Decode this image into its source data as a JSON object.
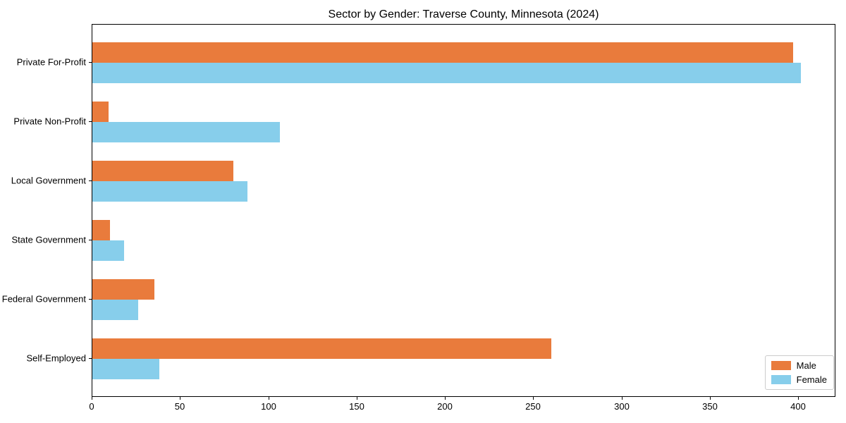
{
  "chart_data": {
    "type": "bar",
    "orientation": "horizontal",
    "title": "Sector by Gender: Traverse County, Minnesota (2024)",
    "categories": [
      "Private For-Profit",
      "Private Non-Profit",
      "Local Government",
      "State Government",
      "Federal Government",
      "Self-Employed"
    ],
    "series": [
      {
        "name": "Male",
        "color": "#e97b3c",
        "values": [
          397,
          9,
          80,
          10,
          35,
          260
        ]
      },
      {
        "name": "Female",
        "color": "#87ceeb",
        "values": [
          401,
          106,
          88,
          18,
          26,
          38
        ]
      }
    ],
    "xlim": [
      0,
      421
    ],
    "x_ticks": [
      0,
      50,
      100,
      150,
      200,
      250,
      300,
      350,
      400
    ],
    "xlabel": "",
    "ylabel": "",
    "grid": false,
    "legend_position": "lower right",
    "axis_color": "#000000",
    "legend_border_color": "#cccccc",
    "background_color": "#ffffff"
  }
}
